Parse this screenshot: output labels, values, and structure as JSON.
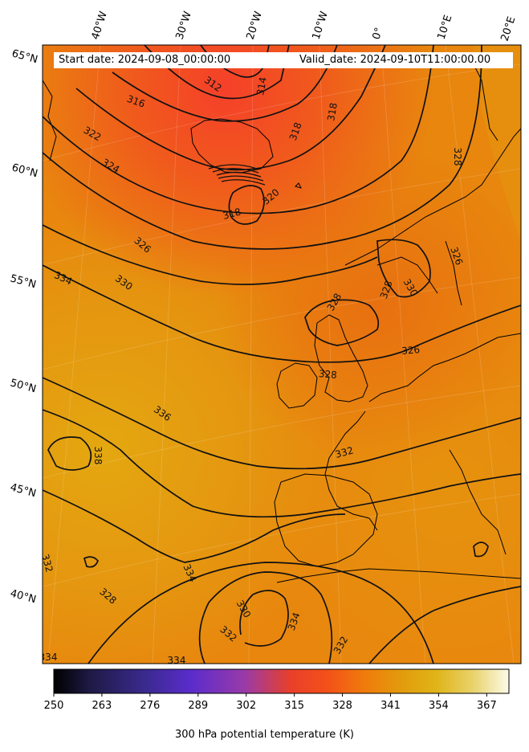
{
  "header": {
    "start_label": "Start date: 2024-09-08_00:00:00",
    "valid_label": "Valid_date: 2024-09-10T11:00:00.00"
  },
  "axes": {
    "lon_labels": [
      "40°W",
      "30°W",
      "20°W",
      "10°W",
      "0°",
      "10°E",
      "20°E"
    ],
    "lat_labels": [
      "65°N",
      "60°N",
      "55°N",
      "50°N",
      "45°N",
      "40°N"
    ]
  },
  "colorbar": {
    "title": "300 hPa potential temperature (K)",
    "ticks": [
      "250",
      "263",
      "276",
      "289",
      "302",
      "315",
      "328",
      "341",
      "354",
      "367"
    ],
    "range": [
      250,
      373
    ],
    "colors": [
      "#000000",
      "#1e1a45",
      "#3a2a8e",
      "#5a2ccc",
      "#9a3aa8",
      "#e8402a",
      "#f3501a",
      "#f07a0c",
      "#e29a0c",
      "#e0b418",
      "#e8d26a",
      "#fdfbe8"
    ]
  },
  "contour_labels": [
    "312",
    "314",
    "316",
    "318",
    "318",
    "322",
    "324",
    "320",
    "318",
    "326",
    "328",
    "326",
    "334",
    "330",
    "328",
    "328",
    "330",
    "326",
    "328",
    "336",
    "338",
    "332",
    "332",
    "334",
    "334",
    "328",
    "330",
    "334",
    "332",
    "332",
    "334"
  ],
  "colors": {
    "warm": "#e2a410",
    "mid": "#e8860e",
    "hot": "#f0441e"
  }
}
